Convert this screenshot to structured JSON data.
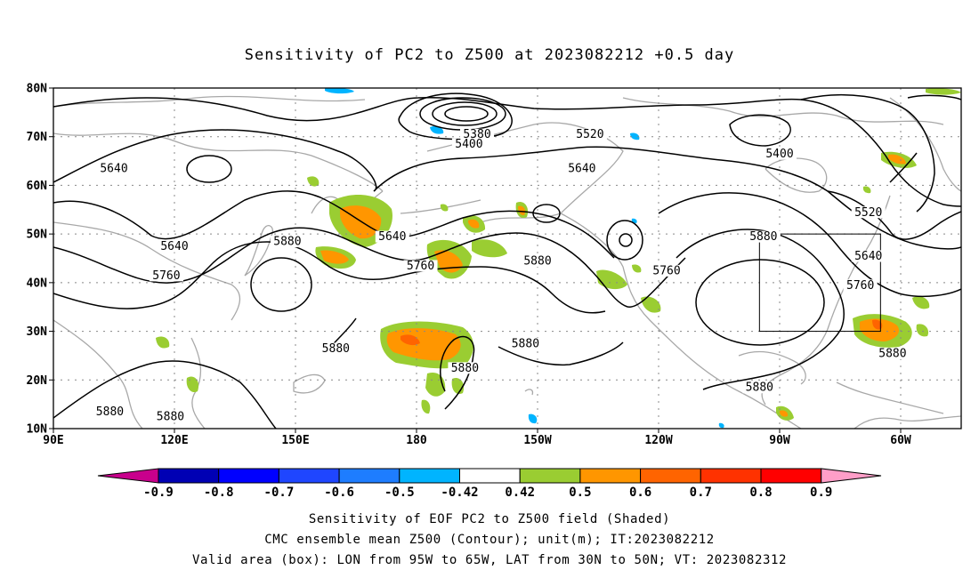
{
  "title": "Sensitivity of PC2 to Z500 at 2023082212 +0.5 day",
  "map": {
    "lat_ticks": [
      "80N",
      "70N",
      "60N",
      "50N",
      "40N",
      "30N",
      "20N",
      "10N"
    ],
    "lon_ticks": [
      "90E",
      "120E",
      "150E",
      "180",
      "150W",
      "120W",
      "90W",
      "60W"
    ],
    "lon_range": [
      90,
      315
    ],
    "lat_range": [
      10,
      80
    ],
    "valid_box": {
      "lon": [
        265,
        295
      ],
      "lat": [
        30,
        50
      ]
    },
    "contour_labels": [
      {
        "text": "5640",
        "lon": 105,
        "lat": 63
      },
      {
        "text": "5640",
        "lon": 120,
        "lat": 47
      },
      {
        "text": "5760",
        "lon": 118,
        "lat": 41
      },
      {
        "text": "5880",
        "lon": 148,
        "lat": 48
      },
      {
        "text": "5880",
        "lon": 160,
        "lat": 26
      },
      {
        "text": "5880",
        "lon": 104,
        "lat": 13
      },
      {
        "text": "5880",
        "lon": 119,
        "lat": 12
      },
      {
        "text": "5380",
        "lon": 195,
        "lat": 70
      },
      {
        "text": "5400",
        "lon": 193,
        "lat": 68
      },
      {
        "text": "5520",
        "lon": 223,
        "lat": 70
      },
      {
        "text": "5640",
        "lon": 221,
        "lat": 63
      },
      {
        "text": "5640",
        "lon": 174,
        "lat": 49
      },
      {
        "text": "5760",
        "lon": 181,
        "lat": 43
      },
      {
        "text": "5880",
        "lon": 210,
        "lat": 44
      },
      {
        "text": "5880",
        "lon": 192,
        "lat": 22
      },
      {
        "text": "5880",
        "lon": 207,
        "lat": 27
      },
      {
        "text": "5760",
        "lon": 242,
        "lat": 42
      },
      {
        "text": "5880",
        "lon": 266,
        "lat": 49
      },
      {
        "text": "5400",
        "lon": 270,
        "lat": 66
      },
      {
        "text": "5520",
        "lon": 292,
        "lat": 54
      },
      {
        "text": "5640",
        "lon": 292,
        "lat": 45
      },
      {
        "text": "5760",
        "lon": 290,
        "lat": 39
      },
      {
        "text": "5880",
        "lon": 298,
        "lat": 25
      },
      {
        "text": "5880",
        "lon": 265,
        "lat": 18
      }
    ]
  },
  "colorbar": {
    "labels": [
      "-0.9",
      "-0.8",
      "-0.7",
      "-0.6",
      "-0.5",
      "-0.42",
      "0.42",
      "0.5",
      "0.6",
      "0.7",
      "0.8",
      "0.9"
    ],
    "colors": [
      "#0000b4",
      "#0000ff",
      "#1f46ff",
      "#1e7dff",
      "#00b4ff",
      "#ffffff",
      "#9acd32",
      "#ff9600",
      "#ff6400",
      "#ff3200",
      "#ff0000"
    ],
    "low_end_color": "#c8008c",
    "high_end_color": "#ff9ec8"
  },
  "colors": {
    "positive_low": "#9acd32",
    "positive_mid": "#ff9600",
    "positive_high": "#ff6400",
    "negative": "#00b4ff",
    "coast": "#a8a8a8",
    "contour": "#000000",
    "grid": "#888888"
  },
  "captions": {
    "line1": "Sensitivity of EOF PC2 to Z500 field (Shaded)",
    "line2": "CMC ensemble mean Z500 (Contour); unit(m); IT:2023082212",
    "line3": "Valid area (box): LON from 95W to 65W, LAT from 30N to 50N; VT: 2023082312"
  }
}
